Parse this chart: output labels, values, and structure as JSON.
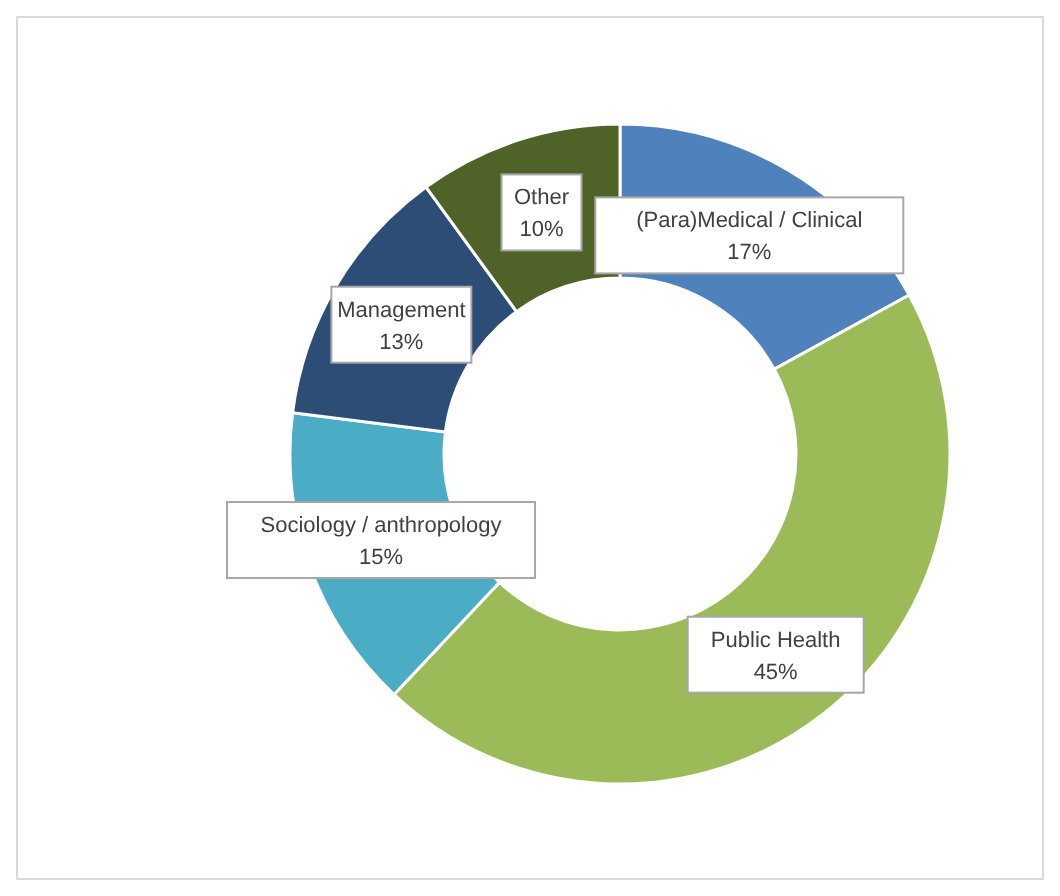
{
  "chart_data": {
    "type": "donut",
    "categories": [
      "(Para)Medical / Clinical",
      "Public Health",
      "Sociology / anthropology",
      "Management",
      "Other"
    ],
    "values": [
      17,
      45,
      15,
      13,
      10
    ],
    "value_labels": [
      "17%",
      "45%",
      "15%",
      "13%",
      "10%"
    ],
    "colors": [
      "#4f81bd",
      "#9bbb59",
      "#4bacc6",
      "#2c4d75",
      "#4f6228"
    ]
  }
}
